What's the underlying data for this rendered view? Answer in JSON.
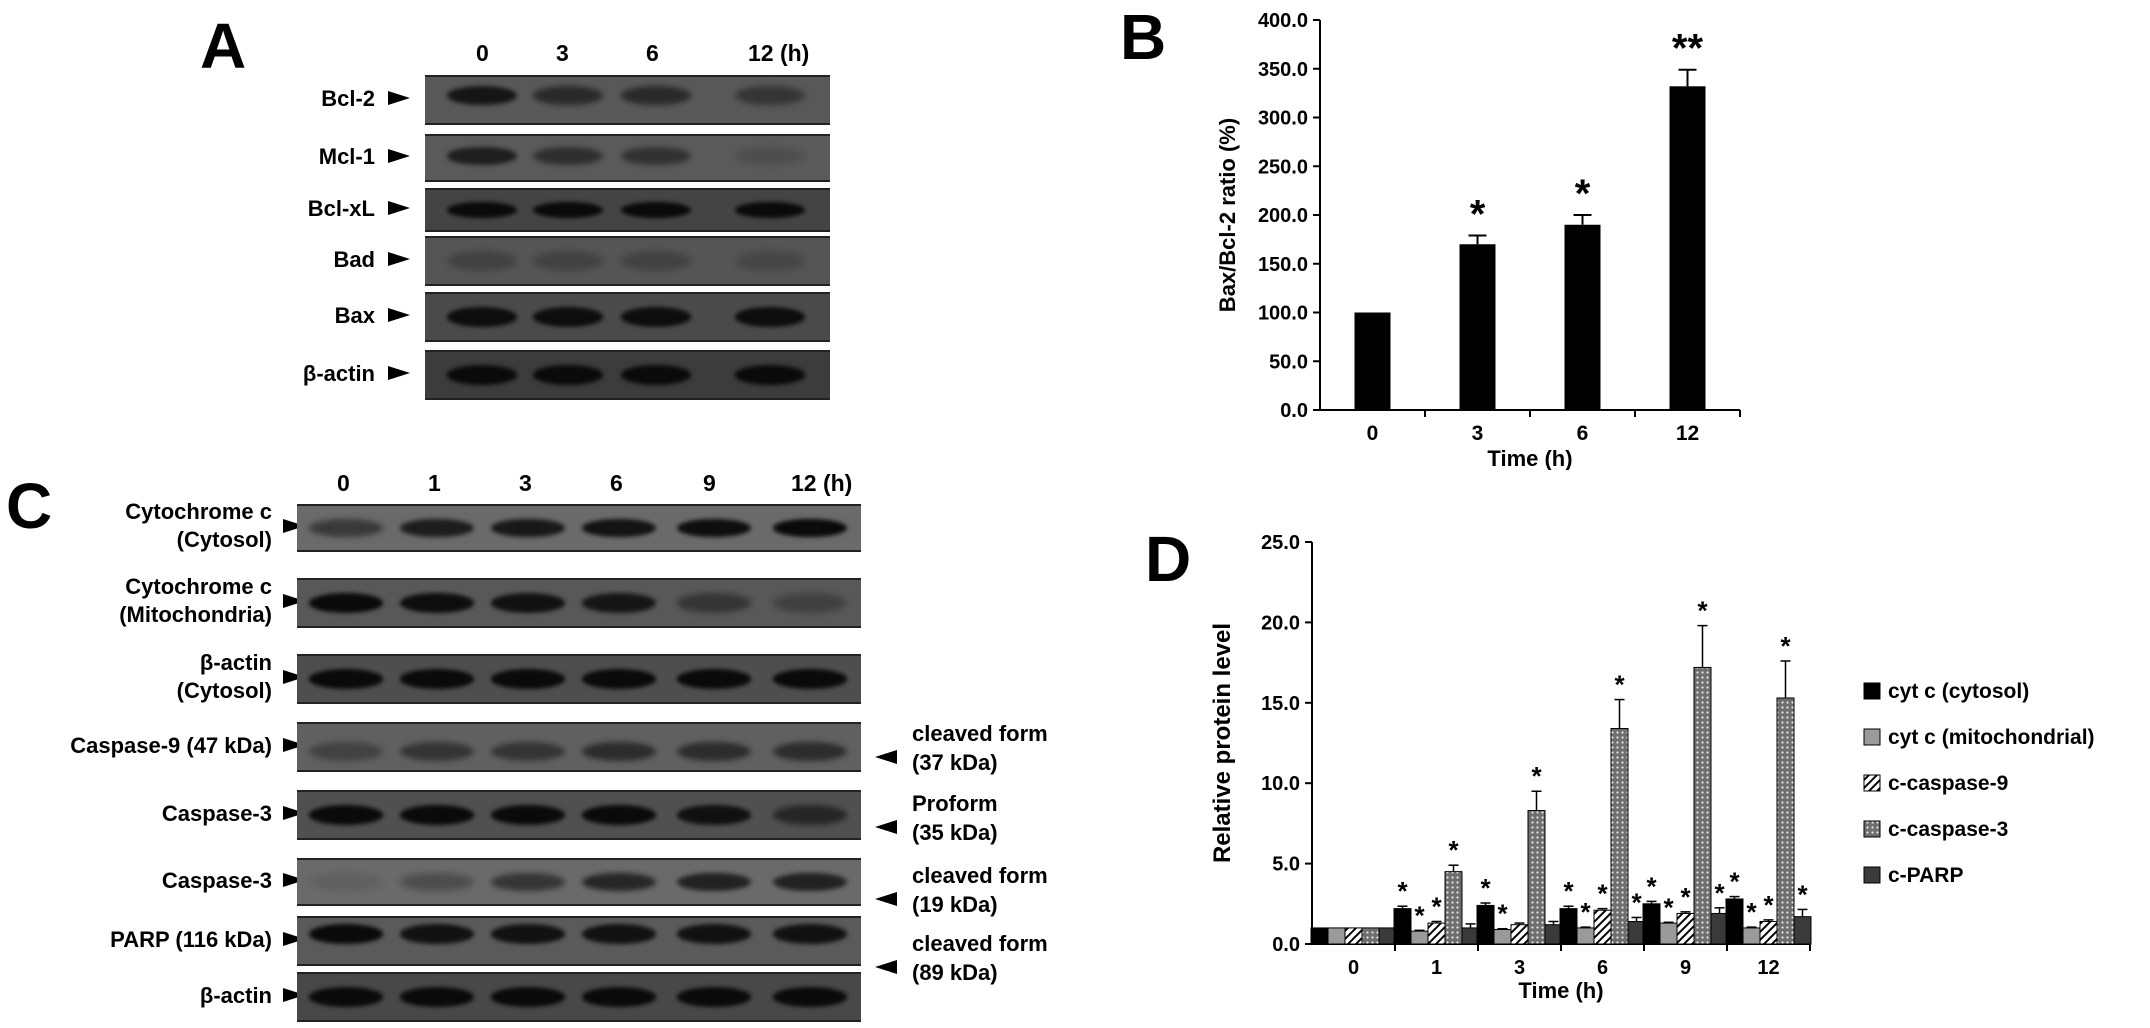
{
  "panels": {
    "a": {
      "letter": "A",
      "lane_labels": [
        "0",
        "3",
        "6",
        "12 (h)"
      ],
      "rows": [
        {
          "label": "Bcl-2",
          "bg": "#585858",
          "intensity": [
            0.85,
            0.6,
            0.6,
            0.45
          ]
        },
        {
          "label": "Mcl-1",
          "bg": "#5a5a5a",
          "intensity": [
            0.75,
            0.55,
            0.5,
            0.15
          ]
        },
        {
          "label": "Bcl-xL",
          "bg": "#444444",
          "intensity": [
            1,
            1,
            1,
            1
          ]
        },
        {
          "label": "Bad",
          "bg": "#555555",
          "intensity": [
            0.25,
            0.25,
            0.25,
            0.2
          ]
        },
        {
          "label": "Bax",
          "bg": "#4a4a4a",
          "intensity": [
            0.95,
            0.95,
            0.95,
            0.95
          ]
        },
        {
          "label": "β-actin",
          "bg": "#3c3c3c",
          "intensity": [
            1,
            1,
            1,
            1
          ]
        }
      ]
    },
    "c": {
      "letter": "C",
      "lane_labels": [
        "0",
        "1",
        "3",
        "6",
        "9",
        "12 (h)"
      ],
      "rows": [
        {
          "label": "Cytochrome c\n(Cytosol)",
          "bg": "#6a6a6a",
          "intensity": [
            0.5,
            0.8,
            0.85,
            0.9,
            0.95,
            1
          ]
        },
        {
          "label": "Cytochrome c\n(Mitochondria)",
          "bg": "#585858",
          "intensity": [
            1,
            0.95,
            0.9,
            0.85,
            0.45,
            0.3
          ]
        },
        {
          "label": "β-actin\n(Cytosol)",
          "bg": "#4e4e4e",
          "intensity": [
            1,
            1,
            1,
            1,
            1,
            1
          ]
        },
        {
          "label": "Caspase-9 (47 kDa)",
          "bg": "#606060",
          "intensity": [
            0.35,
            0.5,
            0.5,
            0.6,
            0.6,
            0.6
          ]
        },
        {
          "label": "Caspase-3",
          "bg": "#505050",
          "intensity": [
            1,
            1,
            1,
            1,
            0.9,
            0.6
          ]
        },
        {
          "label": "Caspase-3",
          "bg": "#6a6a6a",
          "intensity": [
            0.1,
            0.3,
            0.55,
            0.7,
            0.75,
            0.75
          ]
        },
        {
          "label": "PARP (116 kDa)",
          "bg": "#5a5a5a",
          "intensity": [
            1,
            0.9,
            0.9,
            0.9,
            0.9,
            0.9
          ]
        },
        {
          "label": "β-actin",
          "bg": "#484848",
          "intensity": [
            1,
            1,
            1,
            1,
            1,
            1
          ]
        }
      ],
      "side_labels": [
        "cleaved form\n(37 kDa)",
        "Proform\n(35 kDa)",
        "cleaved form\n(19 kDa)",
        "cleaved form\n(89 kDa)"
      ]
    }
  },
  "chart_data": [
    {
      "panel": "B",
      "type": "bar",
      "categories": [
        "0",
        "3",
        "6",
        "12"
      ],
      "values": [
        100.0,
        170.0,
        190.0,
        332.0
      ],
      "errors": [
        0,
        9,
        10,
        17
      ],
      "significance": [
        "",
        "*",
        "*",
        "**"
      ],
      "xlabel": "Time (h)",
      "ylabel": "Bax/Bcl-2 ratio (%)",
      "ylim": [
        0,
        400
      ],
      "yticks": [
        "0.0",
        "50.0",
        "100.0",
        "150.0",
        "200.0",
        "250.0",
        "300.0",
        "350.0",
        "400.0"
      ],
      "grid": false,
      "bar_color": "#000000"
    },
    {
      "panel": "D",
      "type": "bar",
      "categories": [
        "0",
        "1",
        "3",
        "6",
        "9",
        "12"
      ],
      "xlabel": "Time (h)",
      "ylabel": "Relative protein level",
      "ylim": [
        0,
        25
      ],
      "yticks": [
        "0.0",
        "5.0",
        "10.0",
        "15.0",
        "20.0",
        "25.0"
      ],
      "grid": false,
      "legend_position": "right",
      "series": [
        {
          "name": "cyt c (cytosol)",
          "color": "#000000",
          "pattern": "solid",
          "values": [
            1.0,
            2.2,
            2.4,
            2.2,
            2.5,
            2.8
          ],
          "errors": [
            0,
            0.15,
            0.15,
            0.15,
            0.15,
            0.15
          ],
          "significance": [
            "",
            "*",
            "*",
            "*",
            "*",
            "*"
          ]
        },
        {
          "name": "cyt c (mitochondrial)",
          "color": "#9a9a9a",
          "pattern": "solid",
          "values": [
            1.0,
            0.8,
            0.9,
            1.0,
            1.3,
            1.0
          ],
          "errors": [
            0,
            0.05,
            0.05,
            0.05,
            0.05,
            0.05
          ],
          "significance": [
            "",
            "*",
            "*",
            "*",
            "*",
            "*"
          ]
        },
        {
          "name": "c-caspase-9",
          "color": "#ffffff",
          "pattern": "diagonal",
          "values": [
            1.0,
            1.3,
            1.2,
            2.1,
            1.9,
            1.4
          ],
          "errors": [
            0,
            0.1,
            0.1,
            0.1,
            0.1,
            0.1
          ],
          "significance": [
            "",
            "*",
            "",
            "*",
            "*",
            "*"
          ]
        },
        {
          "name": "c-caspase-3",
          "color": "#7a7a7a",
          "pattern": "dots",
          "values": [
            1.0,
            4.5,
            8.3,
            13.4,
            17.2,
            15.3
          ],
          "errors": [
            0,
            0.4,
            1.2,
            1.8,
            2.6,
            2.3
          ],
          "significance": [
            "",
            "*",
            "*",
            "*",
            "*",
            "*"
          ]
        },
        {
          "name": "c-PARP",
          "color": "#3a3a3a",
          "pattern": "solid",
          "values": [
            1.0,
            1.0,
            1.2,
            1.4,
            1.9,
            1.7
          ],
          "errors": [
            0,
            0.25,
            0.2,
            0.25,
            0.35,
            0.45
          ],
          "significance": [
            "",
            "",
            "",
            "*",
            "*",
            "*"
          ]
        }
      ]
    }
  ]
}
